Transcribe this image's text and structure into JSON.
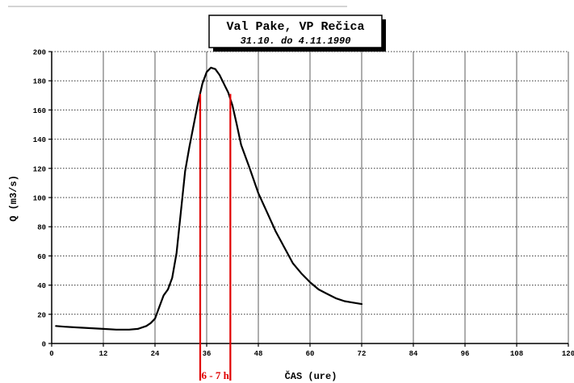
{
  "chart_data": {
    "type": "line",
    "title": "Val Pake, VP Rečica",
    "subtitle": "31.10. do 4.11.1990",
    "xlabel": "ČAS (ure)",
    "ylabel": "Q (m3/s)",
    "xlim": [
      0,
      120
    ],
    "ylim": [
      0,
      200
    ],
    "x_ticks": [
      0,
      12,
      24,
      36,
      48,
      60,
      72,
      84,
      96,
      108,
      120
    ],
    "y_ticks": [
      0,
      20,
      40,
      60,
      80,
      100,
      120,
      140,
      160,
      180,
      200
    ],
    "grid": true,
    "series": [
      {
        "x": [
          1,
          3,
          6,
          9,
          12,
          15,
          18,
          20,
          22,
          23,
          24,
          25,
          26,
          27,
          28,
          29,
          30,
          31,
          32,
          33,
          34,
          35,
          36,
          37,
          38,
          39,
          40,
          41,
          42,
          43,
          44,
          45,
          46,
          48,
          50,
          52,
          54,
          56,
          58,
          60,
          62,
          64,
          66,
          68,
          70,
          72
        ],
        "y": [
          12,
          11.5,
          11,
          10.5,
          10,
          9.5,
          9.5,
          10,
          12,
          14,
          17,
          25,
          33,
          37,
          45,
          62,
          90,
          118,
          135,
          150,
          165,
          178,
          186,
          189,
          188,
          184,
          178,
          172,
          163,
          150,
          136,
          128,
          120,
          103,
          90,
          77,
          66,
          55,
          48,
          42,
          37,
          34,
          31,
          29,
          28,
          27
        ]
      }
    ],
    "annotations": {
      "markers_x": [
        34.5,
        41.5
      ],
      "bracket_label": "6 - 7 h",
      "color": "#e00000"
    }
  }
}
